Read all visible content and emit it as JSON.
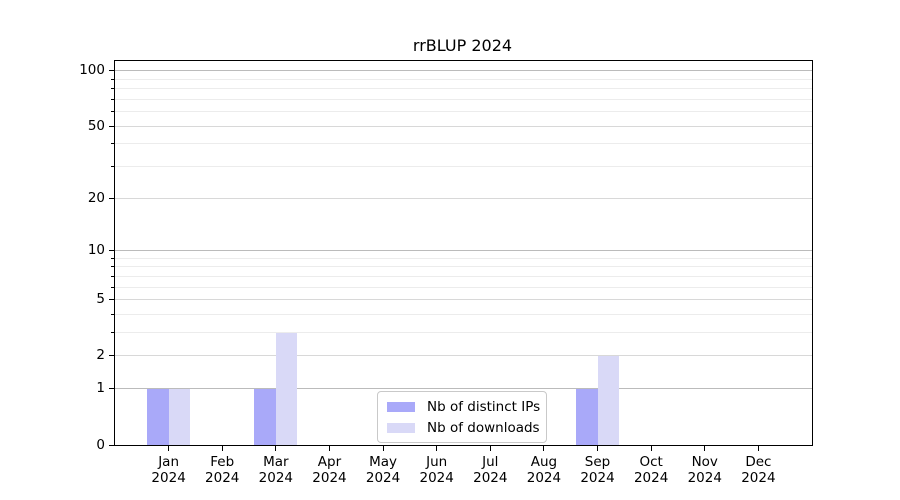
{
  "title": "rrBLUP 2024",
  "chart_data": {
    "type": "bar",
    "title": "rrBLUP 2024",
    "categories": [
      "Jan",
      "Feb",
      "Mar",
      "Apr",
      "May",
      "Jun",
      "Jul",
      "Aug",
      "Sep",
      "Oct",
      "Nov",
      "Dec"
    ],
    "x_year_label": "2024",
    "series": [
      {
        "name": "Nb of distinct IPs",
        "color": "#a9a9f9",
        "values": [
          1,
          0,
          1,
          0,
          0,
          0,
          0,
          0,
          1,
          0,
          0,
          0
        ]
      },
      {
        "name": "Nb of downloads",
        "color": "#d9d9f7",
        "values": [
          1,
          0,
          3,
          0,
          0,
          0,
          0,
          0,
          2,
          0,
          0,
          0
        ]
      }
    ],
    "yscale": "log1p",
    "ylim": [
      0,
      113
    ],
    "yticks": [
      0,
      1,
      2,
      5,
      10,
      20,
      50,
      100
    ],
    "grid": {
      "decade_values": [
        1,
        10,
        100
      ],
      "labeled_minor_values": [
        2,
        5,
        20,
        50
      ],
      "minor_values": [
        3,
        4,
        6,
        7,
        8,
        9,
        30,
        40,
        60,
        70,
        80,
        90
      ]
    },
    "legend_position": "lower center",
    "colors": {
      "bar_distinct_ips": "#a9a9f9",
      "bar_downloads": "#d9d9f7",
      "axis": "#000000",
      "grid_decade": "#bbbbbb",
      "grid_labeled": "#d8d8d8",
      "grid_minor": "#ececec"
    }
  }
}
